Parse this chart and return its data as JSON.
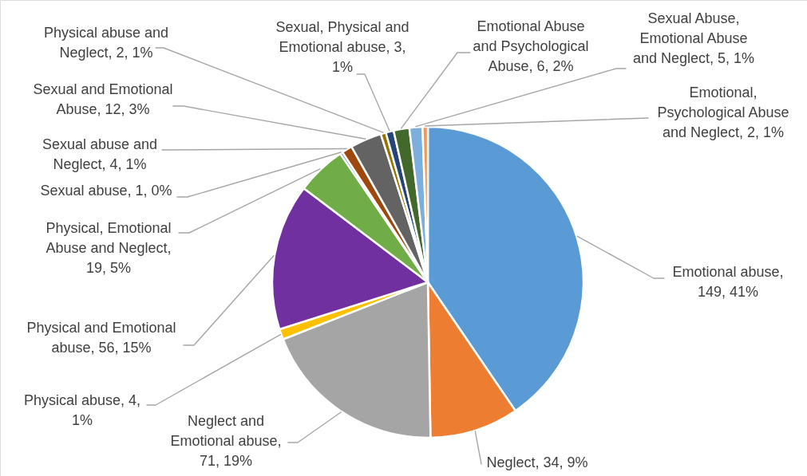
{
  "chart_data": {
    "type": "pie",
    "categories": [
      null,
      null,
      null,
      null,
      null,
      null,
      null,
      null,
      null,
      null,
      null,
      null,
      null,
      null
    ],
    "values": [
      149,
      34,
      71,
      4,
      56,
      19,
      1,
      4,
      12,
      2,
      3,
      6,
      5,
      2
    ],
    "value_labels": [
      "Emotional abuse, 149, 41%",
      "Neglect, 34, 9%",
      "Neglect and Emotional abuse, 71, 19%",
      "Physical abuse, 4, 1%",
      "Physical and Emotional abuse, 56, 15%",
      "Physical, Emotional Abuse and Neglect, 19, 5%",
      "Sexual abuse, 1, 0%",
      "Sexual abuse and Neglect, 4, 1%",
      "Sexual and Emotional Abuse, 12, 3%",
      "Physical abuse and Neglect, 2, 1%",
      "Sexual, Physical and Emotional abuse, 3, 1%",
      "Emotional Abuse and Psychological Abuse, 6, 2%",
      "Sexual Abuse, Emotional Abuse and Neglect, 5, 1%",
      "Emotional, Psychological Abuse and Neglect, 2, 1%"
    ],
    "colors": [
      "#5b9bd5",
      "#ed7d31",
      "#a5a5a5",
      "#ffc000",
      "#7030a0",
      "#70ad47",
      "#255e91",
      "#9e480e",
      "#636363",
      "#997300",
      "#264478",
      "#43682b",
      "#7cafdd",
      "#f1975a"
    ]
  }
}
